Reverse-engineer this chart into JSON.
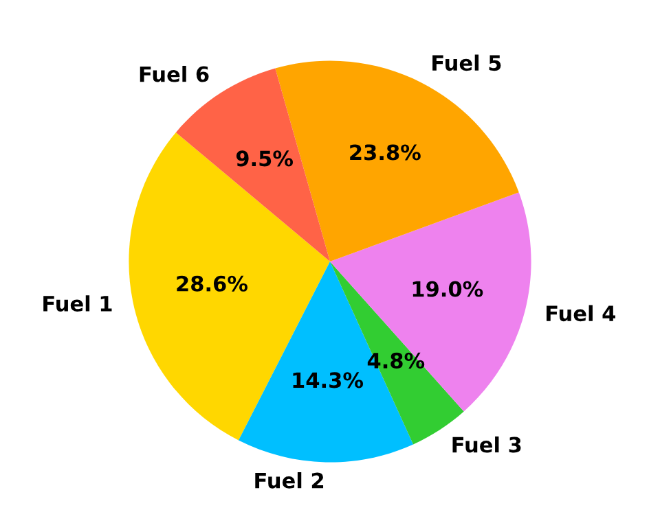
{
  "chart_data": {
    "type": "pie",
    "categories": [
      "Fuel 1",
      "Fuel 2",
      "Fuel 3",
      "Fuel 4",
      "Fuel 5",
      "Fuel 6"
    ],
    "values": [
      28.6,
      14.3,
      4.8,
      19.0,
      23.8,
      9.5
    ],
    "colors": [
      "#ffd700",
      "#00bfff",
      "#32cd32",
      "#ee82ee",
      "#ffa500",
      "#ff6347"
    ],
    "value_labels": [
      "28.6%",
      "14.3%",
      "4.8%",
      "19.0%",
      "23.8%",
      "9.5%"
    ]
  }
}
